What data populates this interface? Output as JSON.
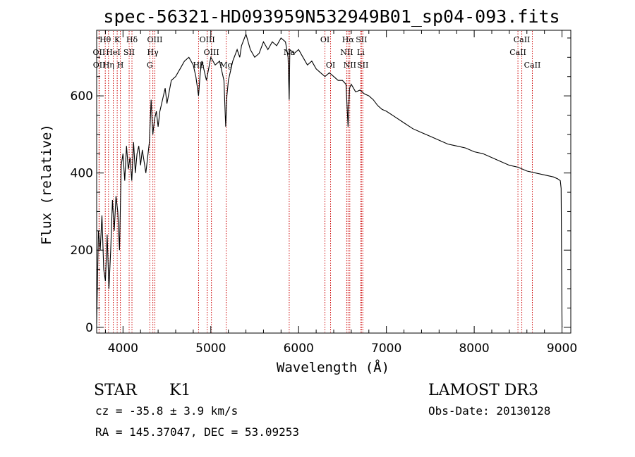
{
  "chart_data": {
    "type": "line",
    "title": "spec-56321-HD093959N532949B01_sp04-093.fits",
    "xlabel": "Wavelength (Å)",
    "ylabel": "Flux (relative)",
    "xlim": [
      3700,
      9100
    ],
    "ylim": [
      -15,
      770
    ],
    "xticks": [
      4000,
      5000,
      6000,
      7000,
      8000,
      9000
    ],
    "yticks": [
      0,
      200,
      400,
      600
    ],
    "series": [
      {
        "name": "spectrum",
        "x": [
          3700,
          3720,
          3740,
          3760,
          3780,
          3800,
          3820,
          3840,
          3860,
          3880,
          3900,
          3920,
          3940,
          3960,
          3980,
          4000,
          4020,
          4040,
          4060,
          4080,
          4100,
          4120,
          4140,
          4160,
          4180,
          4200,
          4220,
          4240,
          4260,
          4280,
          4300,
          4320,
          4340,
          4360,
          4380,
          4400,
          4420,
          4440,
          4460,
          4480,
          4500,
          4550,
          4600,
          4650,
          4700,
          4750,
          4800,
          4830,
          4860,
          4880,
          4900,
          4950,
          5000,
          5050,
          5100,
          5150,
          5170,
          5183,
          5200,
          5250,
          5300,
          5330,
          5350,
          5400,
          5450,
          5500,
          5550,
          5600,
          5650,
          5700,
          5750,
          5800,
          5850,
          5880,
          5893,
          5900,
          5950,
          6000,
          6050,
          6100,
          6150,
          6200,
          6250,
          6300,
          6350,
          6400,
          6450,
          6500,
          6540,
          6563,
          6580,
          6600,
          6650,
          6700,
          6750,
          6800,
          6850,
          6900,
          6950,
          7000,
          7100,
          7200,
          7300,
          7400,
          7500,
          7600,
          7700,
          7800,
          7900,
          8000,
          8100,
          8200,
          8300,
          8400,
          8500,
          8600,
          8700,
          8800,
          8900,
          8950,
          8980,
          8990,
          9000
        ],
        "flux": [
          10,
          250,
          200,
          290,
          150,
          120,
          240,
          100,
          200,
          330,
          250,
          340,
          300,
          200,
          420,
          450,
          380,
          470,
          410,
          440,
          380,
          480,
          400,
          450,
          470,
          420,
          460,
          430,
          400,
          440,
          480,
          590,
          500,
          540,
          560,
          520,
          560,
          580,
          600,
          620,
          580,
          640,
          650,
          670,
          690,
          700,
          680,
          650,
          600,
          660,
          690,
          640,
          700,
          680,
          690,
          640,
          520,
          600,
          640,
          690,
          720,
          700,
          730,
          760,
          720,
          700,
          710,
          740,
          720,
          740,
          730,
          750,
          740,
          700,
          590,
          720,
          710,
          720,
          700,
          680,
          690,
          670,
          660,
          650,
          660,
          650,
          640,
          640,
          630,
          520,
          620,
          630,
          610,
          615,
          605,
          600,
          590,
          575,
          565,
          560,
          545,
          530,
          515,
          505,
          495,
          485,
          475,
          470,
          465,
          455,
          450,
          440,
          430,
          420,
          415,
          405,
          400,
          395,
          390,
          385,
          380,
          360,
          0
        ]
      }
    ],
    "spectral_lines": [
      {
        "label": "Hθ",
        "wavelength": 3798,
        "row": 0
      },
      {
        "label": "OII",
        "wavelength": 3727,
        "row": 1
      },
      {
        "label": "OII",
        "wavelength": 3729,
        "row": 2
      },
      {
        "label": "HeI",
        "wavelength": 3889,
        "row": 1
      },
      {
        "label": "Hη",
        "wavelength": 3835,
        "row": 2
      },
      {
        "label": "K",
        "wavelength": 3934,
        "row": 0
      },
      {
        "label": "SII",
        "wavelength": 4070,
        "row": 1
      },
      {
        "label": "H",
        "wavelength": 3970,
        "row": 2
      },
      {
        "label": "Hδ",
        "wavelength": 4102,
        "row": 0
      },
      {
        "label": "OIII",
        "wavelength": 4363,
        "row": 0
      },
      {
        "label": "Hγ",
        "wavelength": 4340,
        "row": 1
      },
      {
        "label": "G",
        "wavelength": 4305,
        "row": 2
      },
      {
        "label": "OIII",
        "wavelength": 4959,
        "row": 0
      },
      {
        "label": "OIII",
        "wavelength": 5007,
        "row": 1
      },
      {
        "label": "Hβ",
        "wavelength": 4861,
        "row": 2
      },
      {
        "label": "Mg",
        "wavelength": 5175,
        "row": 2
      },
      {
        "label": "Na",
        "wavelength": 5893,
        "row": 1
      },
      {
        "label": "OI",
        "wavelength": 6300,
        "row": 0
      },
      {
        "label": "OI",
        "wavelength": 6364,
        "row": 2
      },
      {
        "label": "Hα",
        "wavelength": 6563,
        "row": 0
      },
      {
        "label": "NII",
        "wavelength": 6548,
        "row": 1
      },
      {
        "label": "NII",
        "wavelength": 6583,
        "row": 2
      },
      {
        "label": "SII",
        "wavelength": 6716,
        "row": 0
      },
      {
        "label": "Li",
        "wavelength": 6708,
        "row": 1
      },
      {
        "label": "SII",
        "wavelength": 6731,
        "row": 2
      },
      {
        "label": "CaII",
        "wavelength": 8542,
        "row": 0
      },
      {
        "label": "CaII",
        "wavelength": 8498,
        "row": 1
      },
      {
        "label": "CaII",
        "wavelength": 8662,
        "row": 2
      }
    ]
  },
  "info": {
    "object_class": "STAR",
    "subclass": "K1",
    "survey": "LAMOST DR3",
    "redshift": "cz = -35.8 ± 3.9 km/s",
    "obs_date": "Obs-Date: 20130128",
    "coordinates": "RA = 145.37047, DEC =  53.09253"
  },
  "colors": {
    "spectrum": "#000000",
    "line_marker": "#cc0000"
  }
}
